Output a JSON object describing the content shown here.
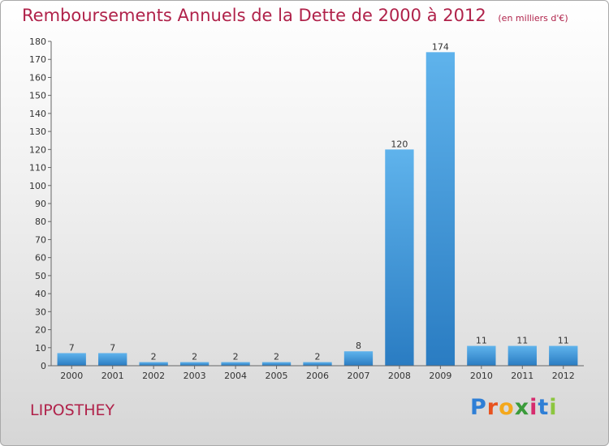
{
  "chart_data": {
    "type": "bar",
    "title": "Remboursements Annuels de la Dette de 2000 à 2012",
    "subtitle": "(en milliers d'€)",
    "categories": [
      "2000",
      "2001",
      "2002",
      "2003",
      "2004",
      "2005",
      "2006",
      "2007",
      "2008",
      "2009",
      "2010",
      "2011",
      "2012"
    ],
    "values": [
      7,
      7,
      2,
      2,
      2,
      2,
      2,
      8,
      120,
      174,
      11,
      11,
      11
    ],
    "ylim": [
      0,
      180
    ],
    "yticks": [
      0,
      10,
      20,
      30,
      40,
      50,
      60,
      70,
      80,
      90,
      100,
      110,
      120,
      130,
      140,
      150,
      160,
      170,
      180
    ],
    "xlabel": "",
    "ylabel": "",
    "grid": false,
    "bar_color": "#4a9fe0"
  },
  "place_name": "LIPOSTHEY",
  "brand": {
    "letters": [
      "P",
      "r",
      "o",
      "x",
      "i",
      "t",
      "i"
    ],
    "colors": [
      "#2f7fd6",
      "#e8531f",
      "#f4a81c",
      "#3a9b3a",
      "#d62c6e",
      "#2f7fd6",
      "#8cc63f"
    ]
  }
}
